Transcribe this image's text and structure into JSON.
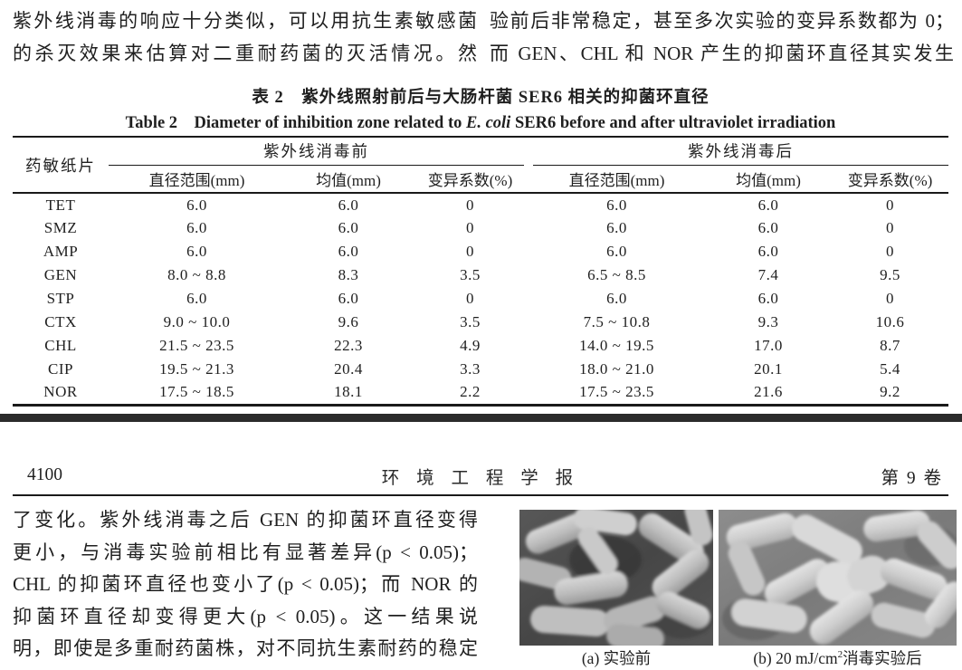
{
  "page_top": {
    "left_lines": [
      "紫外线消毒的响应十分类似，可以用抗生素敏感菌",
      "的杀灭效果来估算对二重耐药菌的灭活情况。然"
    ],
    "right_lines": [
      "验前后非常稳定，甚至多次实验的变异系数都为 0；",
      "而 GEN、CHL 和 NOR 产生的抑菌环直径其实发生"
    ]
  },
  "table": {
    "caption_zh": "表 2　紫外线照射前后与大肠杆菌 SER6 相关的抑菌环直径",
    "caption_en": {
      "prefix": "Table 2　Diameter of inhibition zone related to ",
      "italic": "E. coli",
      "suffix": " SER6 before and after ultraviolet irradiation"
    },
    "columns": {
      "disc": "药敏纸片",
      "group_before": "紫外线消毒前",
      "group_after": "紫外线消毒后",
      "sub_range": "直径范围(mm)",
      "sub_mean": "均值(mm)",
      "sub_cv": "变异系数(%)"
    },
    "rows": [
      {
        "disc": "TET",
        "before": [
          "6.0",
          "6.0",
          "0"
        ],
        "after": [
          "6.0",
          "6.0",
          "0"
        ]
      },
      {
        "disc": "SMZ",
        "before": [
          "6.0",
          "6.0",
          "0"
        ],
        "after": [
          "6.0",
          "6.0",
          "0"
        ]
      },
      {
        "disc": "AMP",
        "before": [
          "6.0",
          "6.0",
          "0"
        ],
        "after": [
          "6.0",
          "6.0",
          "0"
        ]
      },
      {
        "disc": "GEN",
        "before": [
          "8.0 ~ 8.8",
          "8.3",
          "3.5"
        ],
        "after": [
          "6.5 ~ 8.5",
          "7.4",
          "9.5"
        ]
      },
      {
        "disc": "STP",
        "before": [
          "6.0",
          "6.0",
          "0"
        ],
        "after": [
          "6.0",
          "6.0",
          "0"
        ]
      },
      {
        "disc": "CTX",
        "before": [
          "9.0 ~ 10.0",
          "9.6",
          "3.5"
        ],
        "after": [
          "7.5 ~ 10.8",
          "9.3",
          "10.6"
        ]
      },
      {
        "disc": "CHL",
        "before": [
          "21.5 ~ 23.5",
          "22.3",
          "4.9"
        ],
        "after": [
          "14.0 ~ 19.5",
          "17.0",
          "8.7"
        ]
      },
      {
        "disc": "CIP",
        "before": [
          "19.5 ~ 21.3",
          "20.4",
          "3.3"
        ],
        "after": [
          "18.0 ~ 21.0",
          "20.1",
          "5.4"
        ]
      },
      {
        "disc": "NOR",
        "before": [
          "17.5 ~ 18.5",
          "18.1",
          "2.2"
        ],
        "after": [
          "17.5 ~ 23.5",
          "21.6",
          "9.2"
        ]
      }
    ]
  },
  "running_head": {
    "page_number": "4100",
    "journal_title": "环 境 工 程 学 报",
    "volume": "第 9 卷"
  },
  "body_text": {
    "lines": [
      "了变化。紫外线消毒之后 GEN 的抑菌环直径变得",
      "更小，与消毒实验前相比有显著差异(p < 0.05)；",
      "CHL 的抑菌环直径也变小了(p < 0.05)；而 NOR 的",
      "抑菌环直径却变得更大(p < 0.05)。这一结果说",
      "明，即使是多重耐药菌株，对不同抗生素耐药的稳定"
    ]
  },
  "figure": {
    "caption_a": "(a) 实验前",
    "caption_b_pre": "(b) 20 mJ/cm",
    "caption_b_sup": "2",
    "caption_b_post": "消毒实验后"
  },
  "colors": {
    "text": "#1f1f1f",
    "rule": "#1a1a1a",
    "divider_bar": "#2b2b2b"
  }
}
